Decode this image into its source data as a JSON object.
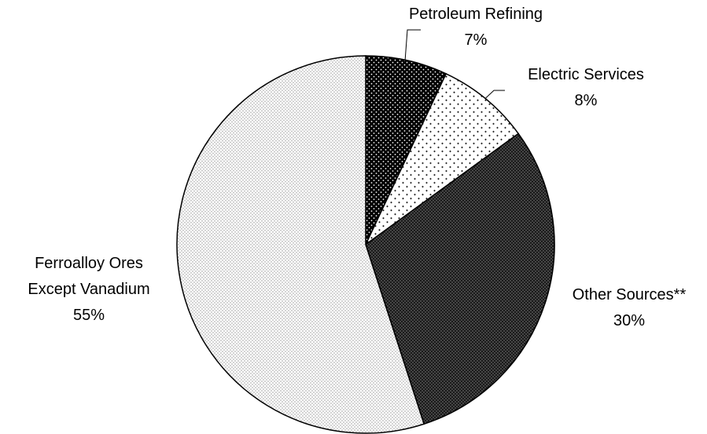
{
  "chart_data": {
    "type": "pie",
    "categories": [
      "Petroleum Refining",
      "Electric Services",
      "Other Sources**",
      "Ferroalloy Ores Except Vanadium"
    ],
    "values": [
      7,
      8,
      30,
      55
    ],
    "value_labels": [
      "7%",
      "8%",
      "30%",
      "55%"
    ]
  }
}
